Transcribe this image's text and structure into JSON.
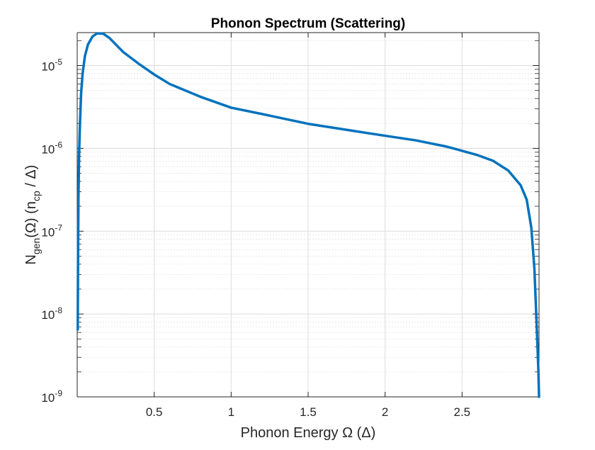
{
  "chart_data": {
    "type": "line",
    "title": "Phonon Spectrum (Scattering)",
    "xlabel_parts": {
      "text": "Phonon Energy ",
      "omega": "Ω",
      "unit_open": " (",
      "delta": "Δ",
      "unit_close": ")"
    },
    "ylabel_parts": {
      "n": "N",
      "gen": "gen",
      "omega_group": "(Ω) (n",
      "cp": "cp",
      "rest": " / Δ)"
    },
    "xlim": [
      0,
      3
    ],
    "ylim": [
      1e-09,
      2.5e-05
    ],
    "y_scale": "log",
    "x_ticks": [
      0.5,
      1,
      1.5,
      2,
      2.5
    ],
    "x_tick_labels": [
      "0.5",
      "1",
      "1.5",
      "2",
      "2.5"
    ],
    "y_ticks": [
      {
        "base": "10",
        "exp": "-9",
        "value": 1e-09
      },
      {
        "base": "10",
        "exp": "-8",
        "value": 1e-08
      },
      {
        "base": "10",
        "exp": "-7",
        "value": 1e-07
      },
      {
        "base": "10",
        "exp": "-6",
        "value": 1e-06
      },
      {
        "base": "10",
        "exp": "-5",
        "value": 1e-05
      }
    ],
    "grid": true,
    "minor_grid": true,
    "line_color": "#0072BD",
    "series": [
      {
        "x": [
          0.0035,
          0.005,
          0.008,
          0.012,
          0.018,
          0.025,
          0.035,
          0.05,
          0.07,
          0.1,
          0.13,
          0.17,
          0.21,
          0.25,
          0.3,
          0.4,
          0.5,
          0.6,
          0.8,
          1.0,
          1.2,
          1.5,
          1.8,
          2.0,
          2.2,
          2.4,
          2.6,
          2.7,
          2.8,
          2.88,
          2.92,
          2.95,
          2.97,
          2.98,
          2.99,
          2.996,
          3.0
        ],
        "y": [
          6.5e-09,
          3e-08,
          2.5e-07,
          8e-07,
          2e-06,
          4.5e-06,
          8e-06,
          1.3e-05,
          1.8e-05,
          2.25e-05,
          2.45e-05,
          2.42e-05,
          2.15e-05,
          1.8e-05,
          1.45e-05,
          1.05e-05,
          7.8e-06,
          6e-06,
          4.2e-06,
          3.1e-06,
          2.6e-06,
          1.98e-06,
          1.62e-06,
          1.42e-06,
          1.25e-06,
          1.05e-06,
          8.3e-07,
          7.1e-07,
          5.4e-07,
          3.6e-07,
          2.4e-07,
          1.1e-07,
          3.5e-08,
          1.2e-08,
          4e-09,
          2e-09,
          1e-09
        ]
      }
    ]
  }
}
